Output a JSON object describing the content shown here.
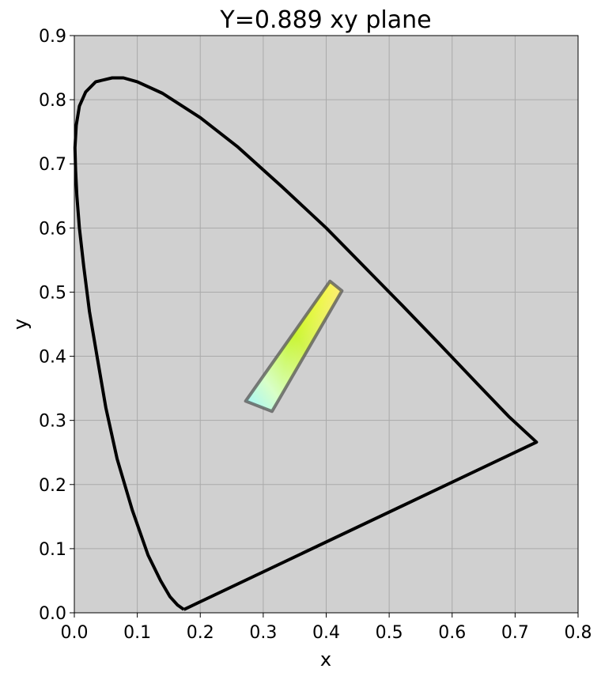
{
  "chart_data": {
    "type": "line",
    "title": "Y=0.889 xy plane",
    "xlabel": "x",
    "ylabel": "y",
    "xlim": [
      0.0,
      0.8
    ],
    "ylim": [
      0.0,
      0.9
    ],
    "xticks": [
      "0.0",
      "0.1",
      "0.2",
      "0.3",
      "0.4",
      "0.5",
      "0.6",
      "0.7",
      "0.8"
    ],
    "yticks": [
      "0.0",
      "0.1",
      "0.2",
      "0.3",
      "0.4",
      "0.5",
      "0.6",
      "0.7",
      "0.8",
      "0.9"
    ],
    "grid": true,
    "plot_background": "#d0d0d0",
    "grid_color": "#aaaaaa",
    "series": [
      {
        "kind": "spectral-locus",
        "color": "#000000",
        "x": [
          0.174,
          0.164,
          0.152,
          0.137,
          0.117,
          0.092,
          0.068,
          0.05,
          0.036,
          0.024,
          0.015,
          0.008,
          0.004,
          0.002,
          0.001,
          0.003,
          0.008,
          0.018,
          0.034,
          0.06,
          0.078,
          0.1,
          0.14,
          0.2,
          0.26,
          0.33,
          0.4,
          0.46,
          0.52,
          0.58,
          0.64,
          0.69,
          0.734,
          0.174
        ],
        "y": [
          0.005,
          0.012,
          0.025,
          0.05,
          0.09,
          0.16,
          0.24,
          0.32,
          0.4,
          0.47,
          0.54,
          0.6,
          0.65,
          0.69,
          0.725,
          0.76,
          0.79,
          0.812,
          0.828,
          0.834,
          0.834,
          0.828,
          0.81,
          0.772,
          0.726,
          0.664,
          0.6,
          0.54,
          0.48,
          0.419,
          0.357,
          0.306,
          0.266,
          0.005
        ]
      },
      {
        "kind": "gamut-slice",
        "color": "#555555",
        "x": [
          0.272,
          0.406,
          0.425,
          0.314,
          0.272
        ],
        "y": [
          0.33,
          0.517,
          0.502,
          0.314,
          0.33
        ]
      }
    ]
  }
}
